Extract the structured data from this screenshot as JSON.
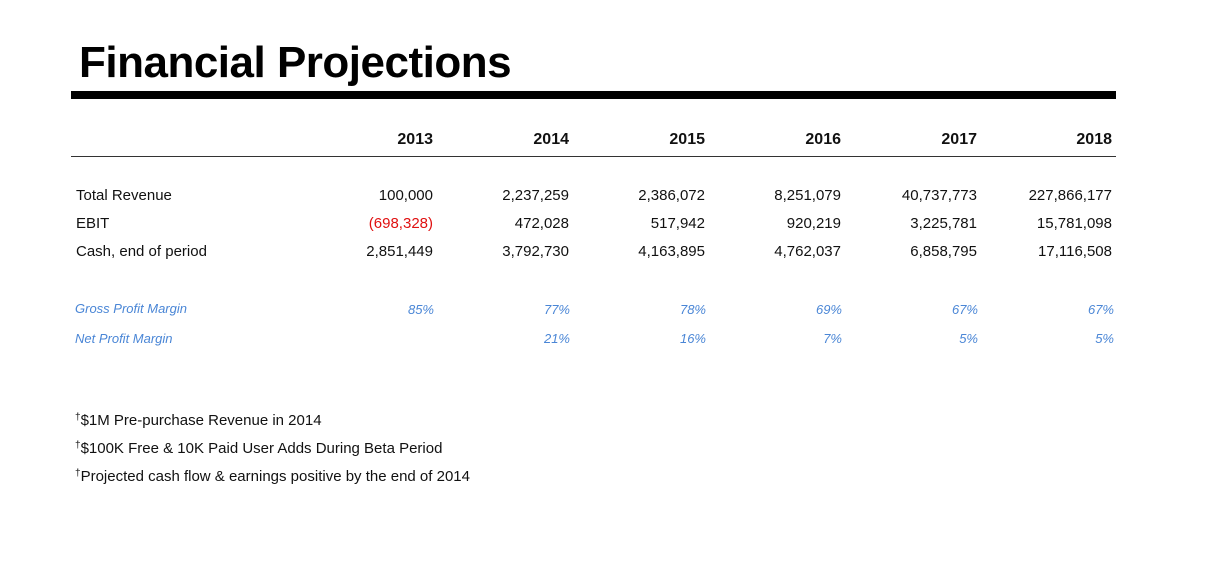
{
  "title": "Financial Projections",
  "years": [
    "2013",
    "2014",
    "2015",
    "2016",
    "2017",
    "2018"
  ],
  "rows": [
    {
      "label": "Total Revenue",
      "values": [
        "100,000",
        "2,237,259",
        "2,386,072",
        "8,251,079",
        "40,737,773",
        "227,866,177"
      ]
    },
    {
      "label": "EBIT",
      "values": [
        "(698,328)",
        "472,028",
        "517,942",
        "920,219",
        "3,225,781",
        "15,781,098"
      ]
    },
    {
      "label": "Cash, end of period",
      "values": [
        "2,851,449",
        "3,792,730",
        "4,163,895",
        "4,762,037",
        "6,858,795",
        "17,116,508"
      ]
    }
  ],
  "margins": [
    {
      "label": "Gross Profit Margin",
      "values": [
        "85%",
        "77%",
        "78%",
        "69%",
        "67%",
        "67%"
      ]
    },
    {
      "label": "Net Profit Margin",
      "values": [
        "",
        "21%",
        "16%",
        "7%",
        "5%",
        "5%"
      ]
    }
  ],
  "notes": {
    "marker": "†",
    "items": [
      "$1M Pre-purchase Revenue in 2014",
      "$100K Free & 10K Paid User Adds During Beta Period",
      "Projected cash flow & earnings positive by the end of 2014"
    ]
  },
  "colors": {
    "negative": "#e01010",
    "margin_text": "#4a86d6",
    "rule": "#000000"
  }
}
